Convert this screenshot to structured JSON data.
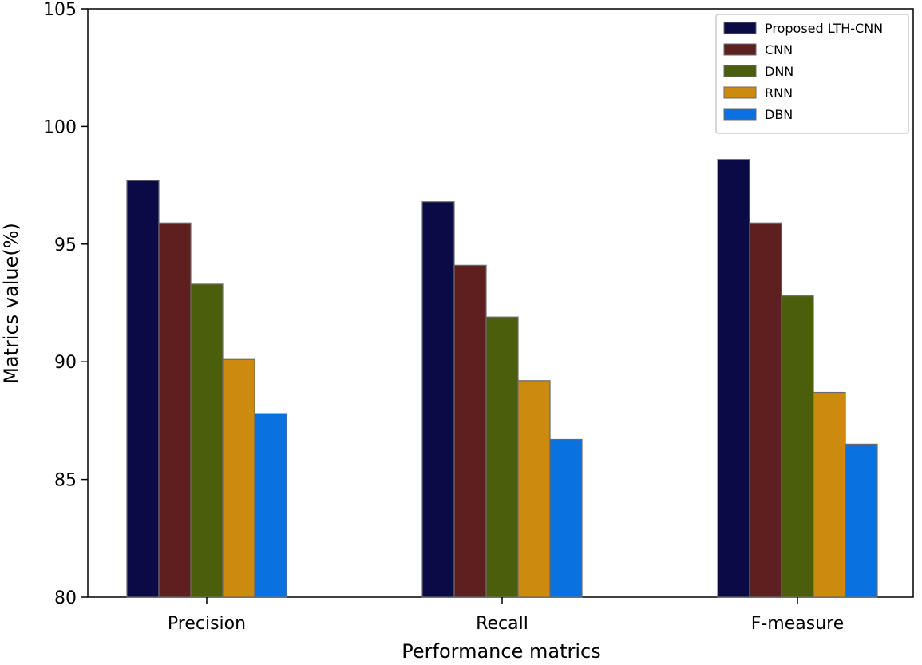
{
  "chart_data": {
    "type": "bar",
    "title": "",
    "xlabel": "Performance matrics",
    "ylabel": "Matrics value(%)",
    "ylim": [
      80,
      105
    ],
    "yticks": [
      80,
      85,
      90,
      95,
      100,
      105
    ],
    "ytick_labels": [
      "80",
      "85",
      "90",
      "95",
      "100",
      "105"
    ],
    "categories": [
      "Precision",
      "Recall",
      "F-measure"
    ],
    "series": [
      {
        "name": "Proposed LTH-CNN",
        "color": "#0a0a46",
        "values": [
          97.7,
          96.8,
          98.6
        ]
      },
      {
        "name": "CNN",
        "color": "#5e1f1f",
        "values": [
          95.9,
          94.1,
          95.9
        ]
      },
      {
        "name": "DNN",
        "color": "#4a5e0b",
        "values": [
          93.3,
          91.9,
          92.8
        ]
      },
      {
        "name": "RNN",
        "color": "#cc8a0f",
        "values": [
          90.1,
          89.2,
          88.7
        ]
      },
      {
        "name": "DBN",
        "color": "#0a72e0",
        "values": [
          87.8,
          86.7,
          86.5
        ]
      }
    ],
    "grid": false,
    "legend_position": "top-right"
  }
}
